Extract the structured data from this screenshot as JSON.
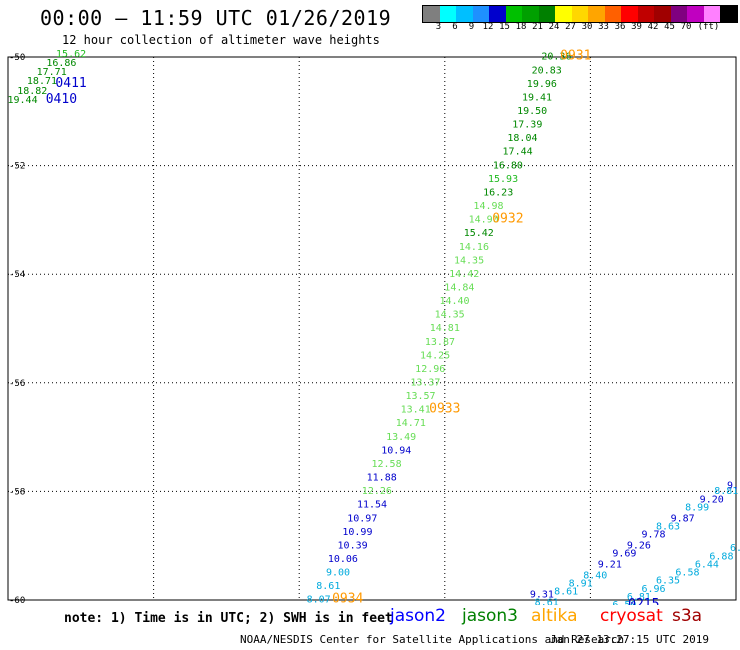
{
  "title": "00:00 – 11:59 UTC 01/26/2019",
  "subtitle": "12 hour collection of altimeter wave heights",
  "colorbar": {
    "colors": [
      "#7f7f7f",
      "#00ffff",
      "#00bfff",
      "#1e90ff",
      "#0000cd",
      "#00c000",
      "#00a000",
      "#008000",
      "#ffff00",
      "#ffd700",
      "#ffa500",
      "#ff6000",
      "#ff0000",
      "#c00000",
      "#a00000",
      "#800080",
      "#c000c0",
      "#ff80ff",
      "#000000"
    ],
    "labels": [
      "3",
      "6",
      "9",
      "12",
      "15",
      "18",
      "21",
      "24",
      "27",
      "30",
      "33",
      "36",
      "39",
      "42",
      "45",
      "70",
      "(ft)"
    ]
  },
  "axes": {
    "lon_ticks": [
      "105",
      "108",
      "111",
      "114",
      "117",
      "120"
    ],
    "lat_ticks": [
      "-50",
      "-52",
      "-54",
      "-56",
      "-58",
      "-60"
    ]
  },
  "chart_data": {
    "type": "scatter",
    "x_range": [
      105,
      120
    ],
    "y_range": [
      -60,
      -50
    ],
    "labels": [
      {
        "lon": 105.3,
        "lat": -50.85,
        "text": "19.44",
        "c": "g3"
      },
      {
        "lon": 105.5,
        "lat": -50.68,
        "text": "18.82",
        "c": "g3"
      },
      {
        "lon": 105.7,
        "lat": -50.5,
        "text": "18.71",
        "c": "g3"
      },
      {
        "lon": 105.9,
        "lat": -50.33,
        "text": "17.71",
        "c": "g3"
      },
      {
        "lon": 106.1,
        "lat": -50.17,
        "text": "16.86",
        "c": "g3"
      },
      {
        "lon": 106.3,
        "lat": -50.0,
        "text": "15.62",
        "c": "g2"
      },
      {
        "lon": 106.3,
        "lat": -50.55,
        "text": "0411",
        "c": "blue",
        "big": true
      },
      {
        "lon": 106.1,
        "lat": -50.85,
        "text": "0410",
        "c": "blue",
        "big": true
      },
      {
        "lon": 116.3,
        "lat": -50.05,
        "text": "20.36",
        "c": "g3"
      },
      {
        "lon": 116.1,
        "lat": -50.3,
        "text": "20.83",
        "c": "g3"
      },
      {
        "lon": 116.0,
        "lat": -50.55,
        "text": "19.96",
        "c": "g3"
      },
      {
        "lon": 115.9,
        "lat": -50.8,
        "text": "19.41",
        "c": "g3"
      },
      {
        "lon": 115.8,
        "lat": -51.05,
        "text": "19.50",
        "c": "g3"
      },
      {
        "lon": 115.7,
        "lat": -51.3,
        "text": "17.39",
        "c": "g3"
      },
      {
        "lon": 115.6,
        "lat": -51.55,
        "text": "18.04",
        "c": "g3"
      },
      {
        "lon": 115.5,
        "lat": -51.8,
        "text": "17.44",
        "c": "g3"
      },
      {
        "lon": 115.3,
        "lat": -52.05,
        "text": "16.80",
        "c": "g3"
      },
      {
        "lon": 115.2,
        "lat": -52.3,
        "text": "15.93",
        "c": "g2"
      },
      {
        "lon": 115.1,
        "lat": -52.55,
        "text": "16.23",
        "c": "g3"
      },
      {
        "lon": 114.9,
        "lat": -52.8,
        "text": "14.98",
        "c": "g1"
      },
      {
        "lon": 114.8,
        "lat": -53.05,
        "text": "14.90",
        "c": "g1"
      },
      {
        "lon": 114.7,
        "lat": -53.3,
        "text": "15.42",
        "c": "g3"
      },
      {
        "lon": 114.6,
        "lat": -53.55,
        "text": "14.16",
        "c": "g1"
      },
      {
        "lon": 114.5,
        "lat": -53.8,
        "text": "14.35",
        "c": "g1"
      },
      {
        "lon": 114.4,
        "lat": -54.05,
        "text": "14.42",
        "c": "g1"
      },
      {
        "lon": 114.3,
        "lat": -54.3,
        "text": "14.84",
        "c": "g1"
      },
      {
        "lon": 114.2,
        "lat": -54.55,
        "text": "14.40",
        "c": "g1"
      },
      {
        "lon": 114.1,
        "lat": -54.8,
        "text": "14.35",
        "c": "g1"
      },
      {
        "lon": 114.0,
        "lat": -55.05,
        "text": "14.81",
        "c": "g1"
      },
      {
        "lon": 113.9,
        "lat": -55.3,
        "text": "13.87",
        "c": "g1"
      },
      {
        "lon": 113.8,
        "lat": -55.55,
        "text": "14.25",
        "c": "g1"
      },
      {
        "lon": 113.7,
        "lat": -55.8,
        "text": "12.96",
        "c": "g1"
      },
      {
        "lon": 113.6,
        "lat": -56.05,
        "text": "13.37",
        "c": "g1"
      },
      {
        "lon": 113.5,
        "lat": -56.3,
        "text": "13.57",
        "c": "g1"
      },
      {
        "lon": 113.4,
        "lat": -56.55,
        "text": "13.41",
        "c": "g1"
      },
      {
        "lon": 113.3,
        "lat": -56.8,
        "text": "14.71",
        "c": "g1"
      },
      {
        "lon": 113.1,
        "lat": -57.05,
        "text": "13.49",
        "c": "g1"
      },
      {
        "lon": 113.0,
        "lat": -57.3,
        "text": "10.94",
        "c": "blue"
      },
      {
        "lon": 112.8,
        "lat": -57.55,
        "text": "12.58",
        "c": "g1"
      },
      {
        "lon": 112.7,
        "lat": -57.8,
        "text": "11.88",
        "c": "blue"
      },
      {
        "lon": 112.6,
        "lat": -58.05,
        "text": "12.26",
        "c": "g1"
      },
      {
        "lon": 112.5,
        "lat": -58.3,
        "text": "11.54",
        "c": "blue"
      },
      {
        "lon": 112.3,
        "lat": -58.55,
        "text": "10.97",
        "c": "blue"
      },
      {
        "lon": 112.2,
        "lat": -58.8,
        "text": "10.99",
        "c": "blue"
      },
      {
        "lon": 112.1,
        "lat": -59.05,
        "text": "10.39",
        "c": "blue"
      },
      {
        "lon": 111.9,
        "lat": -59.3,
        "text": "10.06",
        "c": "blue"
      },
      {
        "lon": 111.8,
        "lat": -59.55,
        "text": "9.00",
        "c": "cyan"
      },
      {
        "lon": 111.6,
        "lat": -59.8,
        "text": "8.61",
        "c": "cyan"
      },
      {
        "lon": 111.4,
        "lat": -60.05,
        "text": "8.07",
        "c": "cyan"
      },
      {
        "lon": 111.3,
        "lat": -60.3,
        "text": "7.52",
        "c": "cyan"
      },
      {
        "lon": 116.7,
        "lat": -50.05,
        "text": "0931",
        "c": "orange",
        "big": true
      },
      {
        "lon": 115.3,
        "lat": -53.05,
        "text": "0932",
        "c": "orange",
        "big": true
      },
      {
        "lon": 114.0,
        "lat": -56.55,
        "text": "0933",
        "c": "orange",
        "big": true
      },
      {
        "lon": 112.0,
        "lat": -60.05,
        "text": "0934",
        "c": "orange",
        "big": true
      },
      {
        "lon": 115.8,
        "lat": -60.3,
        "text": "8.89",
        "c": "cyan"
      },
      {
        "lon": 116.1,
        "lat": -60.1,
        "text": "8.61",
        "c": "cyan"
      },
      {
        "lon": 116.0,
        "lat": -59.95,
        "text": "9.31",
        "c": "blue"
      },
      {
        "lon": 116.5,
        "lat": -59.9,
        "text": "8.61",
        "c": "cyan"
      },
      {
        "lon": 116.8,
        "lat": -59.75,
        "text": "8.91",
        "c": "cyan"
      },
      {
        "lon": 117.1,
        "lat": -59.6,
        "text": "8.40",
        "c": "cyan"
      },
      {
        "lon": 117.4,
        "lat": -59.4,
        "text": "9.21",
        "c": "blue"
      },
      {
        "lon": 117.7,
        "lat": -59.2,
        "text": "9.69",
        "c": "blue"
      },
      {
        "lon": 118.0,
        "lat": -59.05,
        "text": "9.26",
        "c": "blue"
      },
      {
        "lon": 118.3,
        "lat": -58.85,
        "text": "9.78",
        "c": "blue"
      },
      {
        "lon": 118.6,
        "lat": -58.7,
        "text": "8.63",
        "c": "cyan"
      },
      {
        "lon": 118.9,
        "lat": -58.55,
        "text": "9.87",
        "c": "blue"
      },
      {
        "lon": 119.2,
        "lat": -58.35,
        "text": "8.99",
        "c": "cyan"
      },
      {
        "lon": 119.5,
        "lat": -58.2,
        "text": "9.20",
        "c": "blue"
      },
      {
        "lon": 119.8,
        "lat": -58.05,
        "text": "8.81",
        "c": "cyan"
      },
      {
        "lon": 120.0,
        "lat": -57.95,
        "text": "9.1",
        "c": "blue"
      },
      {
        "lon": 116.4,
        "lat": -60.3,
        "text": "0323",
        "c": "g3",
        "big": true
      },
      {
        "lon": 117.4,
        "lat": -60.3,
        "text": "6.82",
        "c": "cyan"
      },
      {
        "lon": 117.7,
        "lat": -60.15,
        "text": "6.50",
        "c": "cyan"
      },
      {
        "lon": 118.0,
        "lat": -60.0,
        "text": "6.81",
        "c": "cyan"
      },
      {
        "lon": 118.3,
        "lat": -59.85,
        "text": "6.96",
        "c": "cyan"
      },
      {
        "lon": 118.6,
        "lat": -59.7,
        "text": "6.35",
        "c": "cyan"
      },
      {
        "lon": 119.0,
        "lat": -59.55,
        "text": "6.58",
        "c": "cyan"
      },
      {
        "lon": 119.4,
        "lat": -59.4,
        "text": "6.44",
        "c": "cyan"
      },
      {
        "lon": 119.7,
        "lat": -59.25,
        "text": "6.88",
        "c": "cyan"
      },
      {
        "lon": 120.0,
        "lat": -59.1,
        "text": "6.",
        "c": "cyan"
      },
      {
        "lon": 118.1,
        "lat": -60.15,
        "text": "0215",
        "c": "blue",
        "big": true
      },
      {
        "lon": 117.9,
        "lat": -60.3,
        "text": "0214",
        "c": "blue",
        "big": true
      }
    ]
  },
  "note": "note:  1) Time is in UTC;  2) SWH is in feet",
  "satellites": {
    "jason2": "jason2",
    "jason3": "jason3",
    "altika": "altika",
    "cryosat": "cryosat",
    "s3a": "s3a"
  },
  "credit": "NOAA/NESDIS Center for Satellite Applications and Research",
  "stamp": "Jan 27  13:27:15 UTC 2019"
}
